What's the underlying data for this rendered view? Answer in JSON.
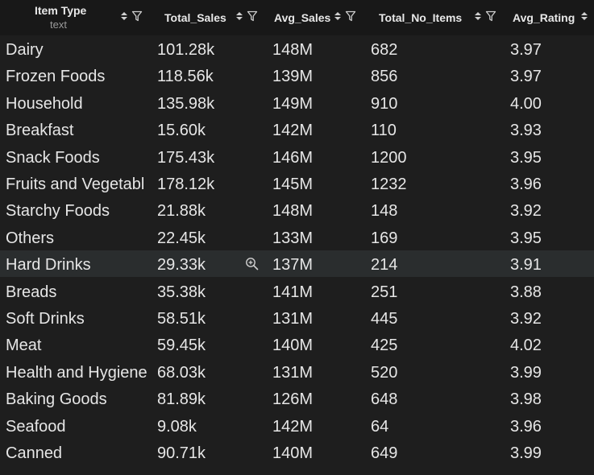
{
  "columns": [
    {
      "key": "item_type",
      "label": "Item Type",
      "subtitle": "text"
    },
    {
      "key": "total_sales",
      "label": "Total_Sales"
    },
    {
      "key": "avg_sales",
      "label": "Avg_Sales"
    },
    {
      "key": "total_no_items",
      "label": "Total_No_Items"
    },
    {
      "key": "avg_rating",
      "label": "Avg_Rating"
    }
  ],
  "rows": [
    {
      "item_type": "Dairy",
      "total_sales": "101.28k",
      "avg_sales": "148M",
      "total_no_items": "682",
      "avg_rating": "3.97"
    },
    {
      "item_type": "Frozen Foods",
      "total_sales": "118.56k",
      "avg_sales": "139M",
      "total_no_items": "856",
      "avg_rating": "3.97"
    },
    {
      "item_type": "Household",
      "total_sales": "135.98k",
      "avg_sales": "149M",
      "total_no_items": "910",
      "avg_rating": "4.00"
    },
    {
      "item_type": "Breakfast",
      "total_sales": "15.60k",
      "avg_sales": "142M",
      "total_no_items": "110",
      "avg_rating": "3.93"
    },
    {
      "item_type": "Snack Foods",
      "total_sales": "175.43k",
      "avg_sales": "146M",
      "total_no_items": "1200",
      "avg_rating": "3.95"
    },
    {
      "item_type": "Fruits and Vegetabl",
      "total_sales": "178.12k",
      "avg_sales": "145M",
      "total_no_items": "1232",
      "avg_rating": "3.96"
    },
    {
      "item_type": "Starchy Foods",
      "total_sales": "21.88k",
      "avg_sales": "148M",
      "total_no_items": "148",
      "avg_rating": "3.92"
    },
    {
      "item_type": "Others",
      "total_sales": "22.45k",
      "avg_sales": "133M",
      "total_no_items": "169",
      "avg_rating": "3.95"
    },
    {
      "item_type": "Hard Drinks",
      "total_sales": "29.33k",
      "avg_sales": "137M",
      "total_no_items": "214",
      "avg_rating": "3.91"
    },
    {
      "item_type": "Breads",
      "total_sales": "35.38k",
      "avg_sales": "141M",
      "total_no_items": "251",
      "avg_rating": "3.88"
    },
    {
      "item_type": "Soft Drinks",
      "total_sales": "58.51k",
      "avg_sales": "131M",
      "total_no_items": "445",
      "avg_rating": "3.92"
    },
    {
      "item_type": "Meat",
      "total_sales": "59.45k",
      "avg_sales": "140M",
      "total_no_items": "425",
      "avg_rating": "4.02"
    },
    {
      "item_type": "Health and Hygiene",
      "total_sales": "68.03k",
      "avg_sales": "131M",
      "total_no_items": "520",
      "avg_rating": "3.99"
    },
    {
      "item_type": "Baking Goods",
      "total_sales": "81.89k",
      "avg_sales": "126M",
      "total_no_items": "648",
      "avg_rating": "3.98"
    },
    {
      "item_type": "Seafood",
      "total_sales": "9.08k",
      "avg_sales": "142M",
      "total_no_items": "64",
      "avg_rating": "3.96"
    },
    {
      "item_type": "Canned",
      "total_sales": "90.71k",
      "avg_sales": "140M",
      "total_no_items": "649",
      "avg_rating": "3.99"
    }
  ],
  "hovered_row_index": 8,
  "icons": {
    "sort": "sort-icon",
    "filter": "filter-icon",
    "zoom": "zoom-in-icon"
  },
  "colors": {
    "background": "#1e1e1e",
    "header_background": "#181818",
    "hover_row": "#2a2d2e",
    "text": "#e6e6e6",
    "subtext": "#9a9a9a"
  }
}
